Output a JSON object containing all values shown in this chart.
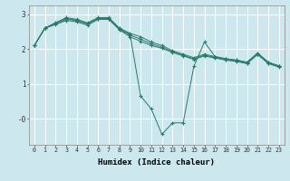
{
  "xlabel": "Humidex (Indice chaleur)",
  "bg_color": "#cce8ee",
  "grid_color": "#ffffff",
  "line_color": "#2a7a6a",
  "xlim": [
    -0.5,
    23.5
  ],
  "ylim": [
    -0.75,
    3.25
  ],
  "xticks": [
    0,
    1,
    2,
    3,
    4,
    5,
    6,
    7,
    8,
    9,
    10,
    11,
    12,
    13,
    14,
    15,
    16,
    17,
    18,
    19,
    20,
    21,
    22,
    23
  ],
  "yticks": [
    0.0,
    1.0,
    2.0,
    3.0
  ],
  "ytick_labels": [
    "-0",
    "1",
    "2",
    "3"
  ],
  "series": [
    [
      2.1,
      2.6,
      2.75,
      2.9,
      2.85,
      2.75,
      2.9,
      2.9,
      2.6,
      2.45,
      2.35,
      2.2,
      2.1,
      1.95,
      1.85,
      1.75,
      1.85,
      1.78,
      1.72,
      1.68,
      1.62,
      1.88,
      1.62,
      1.52
    ],
    [
      2.1,
      2.6,
      2.72,
      2.85,
      2.82,
      2.72,
      2.87,
      2.87,
      2.57,
      2.4,
      2.28,
      2.15,
      2.05,
      1.92,
      1.82,
      1.72,
      1.82,
      1.76,
      1.7,
      1.66,
      1.6,
      1.86,
      1.6,
      1.5
    ],
    [
      2.1,
      2.6,
      2.7,
      2.82,
      2.78,
      2.68,
      2.85,
      2.85,
      2.55,
      2.35,
      2.22,
      2.1,
      2.02,
      1.9,
      1.8,
      1.7,
      1.8,
      1.74,
      1.68,
      1.64,
      1.58,
      1.84,
      1.58,
      1.48
    ],
    [
      2.1,
      2.6,
      2.75,
      2.88,
      2.82,
      2.72,
      2.88,
      2.88,
      2.58,
      2.42,
      0.65,
      0.28,
      -0.45,
      -0.12,
      -0.12,
      1.5,
      2.2,
      1.78,
      1.72,
      1.68,
      1.62,
      1.88,
      1.62,
      1.5
    ]
  ]
}
